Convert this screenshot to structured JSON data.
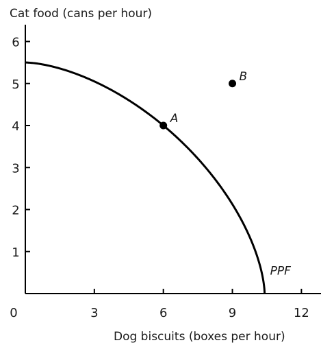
{
  "chart_data": {
    "type": "line",
    "xlabel": "Dog biscuits (boxes per hour)",
    "ylabel": "Cat food (cans per hour)",
    "xlim": [
      0,
      13
    ],
    "ylim": [
      0,
      6.4
    ],
    "x_ticks": [
      0,
      3,
      6,
      9,
      12
    ],
    "y_ticks": [
      1,
      2,
      3,
      4,
      5,
      6
    ],
    "origin_label": "0",
    "grid": false,
    "curve": {
      "label": "PPF",
      "x_intercept": 10.4,
      "y_intercept": 5.5
    },
    "points": [
      {
        "label": "A",
        "x": 6,
        "y": 4
      },
      {
        "label": "B",
        "x": 9,
        "y": 5
      }
    ],
    "colors": {
      "line": "#000000",
      "text": "#1a1a1a"
    }
  }
}
